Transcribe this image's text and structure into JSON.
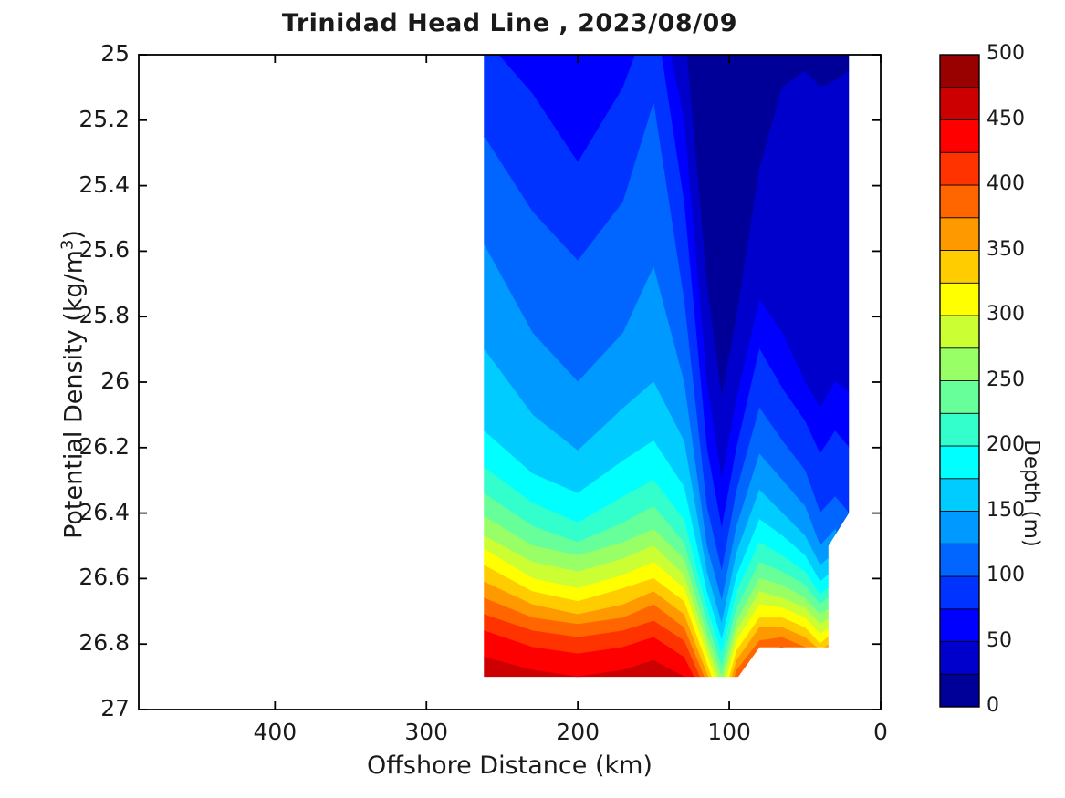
{
  "figure": {
    "title": "Trinidad Head Line , 2023/08/09",
    "background": "#ffffff"
  },
  "chart_data": {
    "type": "heatmap",
    "subtype": "filled-contour-section",
    "title": "Trinidad Head Line , 2023/08/09",
    "xlabel": "Offshore Distance (km)",
    "ylabel": "Potential Density (kg/m3)",
    "ylabel_parts": {
      "main": "Potential Density (kg/m",
      "sup": "3",
      "end": ")"
    },
    "x_axis": {
      "label": "Offshore Distance (km)",
      "ticks": [
        400,
        300,
        200,
        100,
        0
      ],
      "tick_labels": [
        "400",
        "300",
        "200",
        "100",
        "0"
      ],
      "range": [
        0,
        490
      ],
      "reversed": true,
      "grid": false
    },
    "y_axis": {
      "label": "Potential Density (kg/m3)",
      "ticks": [
        25,
        25.2,
        25.4,
        25.6,
        25.8,
        26,
        26.2,
        26.4,
        26.6,
        26.8,
        27
      ],
      "tick_labels": [
        "25",
        "25.2",
        "25.4",
        "25.6",
        "25.8",
        "26",
        "26.2",
        "26.4",
        "26.6",
        "26.8",
        "27"
      ],
      "range": [
        25,
        27
      ],
      "increases_downward": true,
      "grid": false
    },
    "colorbar": {
      "label": "Depth (m)",
      "ticks": [
        0,
        50,
        100,
        150,
        200,
        250,
        300,
        350,
        400,
        450,
        500
      ],
      "tick_labels": [
        "0",
        "50",
        "100",
        "150",
        "200",
        "250",
        "300",
        "350",
        "400",
        "450",
        "500"
      ],
      "level_step_m": 25,
      "range": [
        0,
        500
      ],
      "colors_bottom_to_top": [
        "#000099",
        "#0000CC",
        "#0000FF",
        "#0033FF",
        "#0066FF",
        "#0099FF",
        "#00CCFF",
        "#00FFFF",
        "#33FFCC",
        "#66FF99",
        "#99FF66",
        "#CCFF33",
        "#FFFF00",
        "#FFCC00",
        "#FF9900",
        "#FF6600",
        "#FF3300",
        "#FF0000",
        "#CC0000",
        "#990000"
      ]
    },
    "stations_km": [
      262,
      230,
      200,
      170,
      150,
      130,
      115,
      105,
      95,
      80,
      65,
      50,
      40,
      30,
      21
    ],
    "depth_isolines_m": [
      25,
      50,
      75,
      100,
      125,
      150,
      175,
      200,
      225,
      250,
      275,
      300,
      325,
      350,
      375,
      400,
      425,
      450,
      475
    ],
    "isoline_density_kg_m3": [
      [
        24.5,
        24.6,
        24.7,
        24.6,
        24.5,
        24.9,
        25.7,
        26.05,
        25.8,
        25.35,
        25.1,
        25.05,
        25.1,
        25.08,
        25.05
      ],
      [
        24.75,
        24.85,
        24.98,
        24.85,
        24.75,
        25.2,
        26.0,
        26.3,
        26.05,
        25.75,
        25.85,
        26.0,
        26.08,
        26.0,
        26.03
      ],
      [
        24.95,
        25.12,
        25.33,
        25.1,
        24.85,
        25.45,
        26.2,
        26.45,
        26.2,
        25.9,
        26.02,
        26.12,
        26.22,
        26.15,
        26.2
      ],
      [
        25.25,
        25.48,
        25.63,
        25.45,
        25.15,
        25.75,
        26.38,
        26.58,
        26.33,
        26.08,
        26.18,
        26.27,
        26.4,
        26.35,
        26.4
      ],
      [
        25.58,
        25.85,
        26.0,
        25.85,
        25.65,
        26.0,
        26.5,
        26.67,
        26.44,
        26.22,
        26.3,
        26.38,
        26.5,
        26.45,
        26.54
      ],
      [
        25.9,
        26.1,
        26.21,
        26.08,
        26.0,
        26.18,
        26.58,
        26.74,
        26.52,
        26.33,
        26.4,
        26.47,
        26.56,
        26.52,
        26.62
      ],
      [
        26.15,
        26.28,
        26.34,
        26.24,
        26.18,
        26.32,
        26.64,
        26.79,
        26.59,
        26.42,
        26.47,
        26.53,
        26.61,
        26.57,
        26.68
      ],
      [
        26.26,
        26.37,
        26.43,
        26.35,
        26.3,
        26.42,
        26.69,
        26.83,
        26.64,
        26.49,
        26.53,
        26.58,
        26.65,
        26.61,
        26.73
      ],
      [
        26.34,
        26.44,
        26.49,
        26.43,
        26.38,
        26.49,
        26.73,
        26.87,
        26.69,
        26.55,
        26.58,
        26.62,
        26.68,
        26.64,
        26.77
      ],
      [
        26.41,
        26.5,
        26.53,
        26.49,
        26.45,
        26.54,
        26.77,
        26.9,
        26.73,
        26.6,
        26.62,
        26.66,
        26.71,
        26.68,
        26.81
      ],
      [
        26.47,
        26.55,
        26.58,
        26.54,
        26.5,
        26.59,
        26.8,
        26.93,
        26.76,
        26.64,
        26.66,
        26.69,
        26.74,
        26.71,
        26.85
      ],
      [
        26.51,
        26.6,
        26.63,
        26.59,
        26.55,
        26.63,
        26.83,
        26.96,
        26.79,
        26.68,
        26.69,
        26.72,
        26.77,
        26.74,
        26.88
      ],
      [
        26.56,
        26.64,
        26.67,
        26.63,
        26.6,
        26.67,
        26.86,
        26.99,
        26.82,
        26.72,
        26.72,
        26.75,
        26.8,
        26.76,
        26.91
      ],
      [
        26.61,
        26.68,
        26.71,
        26.68,
        26.64,
        26.71,
        26.89,
        27.01,
        26.85,
        26.75,
        26.75,
        26.78,
        26.82,
        26.79,
        26.94
      ],
      [
        26.66,
        26.72,
        26.74,
        26.72,
        26.68,
        26.75,
        26.92,
        27.04,
        26.88,
        26.79,
        26.78,
        26.81,
        26.85,
        26.82,
        26.97
      ],
      [
        26.71,
        26.76,
        26.78,
        26.76,
        26.73,
        26.79,
        26.95,
        27.06,
        26.91,
        26.82,
        26.81,
        26.84,
        26.88,
        26.85,
        27.0
      ],
      [
        26.76,
        26.81,
        26.83,
        26.81,
        26.78,
        26.84,
        26.98,
        27.09,
        26.94,
        26.86,
        26.84,
        26.87,
        26.91,
        26.88,
        27.03
      ],
      [
        26.84,
        26.88,
        26.9,
        26.88,
        26.85,
        26.9,
        27.02,
        27.12,
        26.98,
        26.91,
        26.89,
        26.91,
        26.94,
        26.92,
        27.07
      ],
      [
        26.95,
        27.0,
        27.0,
        27.0,
        26.95,
        27.0,
        27.1,
        27.2,
        27.1,
        27.0,
        26.97,
        27.0,
        27.02,
        27.0,
        27.15
      ]
    ],
    "region_outline_km_density": [
      [
        262,
        25.0
      ],
      [
        21,
        25.0
      ],
      [
        21,
        26.4
      ],
      [
        34.5,
        26.5
      ],
      [
        34.5,
        26.81
      ],
      [
        80,
        26.81
      ],
      [
        94,
        26.9
      ],
      [
        262,
        26.9
      ]
    ]
  }
}
